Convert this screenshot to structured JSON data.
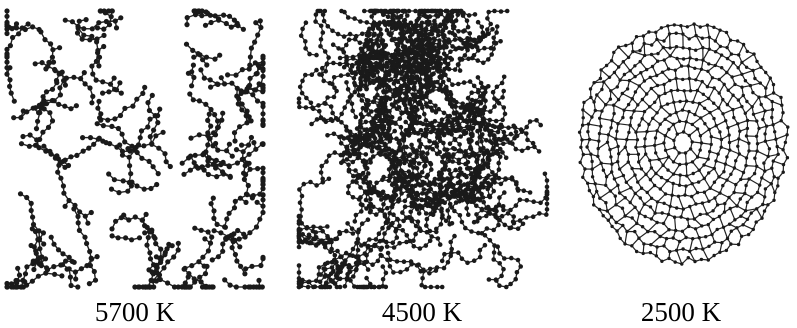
{
  "panels": [
    {
      "label": "5700 K",
      "structure": "dispersed-chains"
    },
    {
      "label": "4500 K",
      "structure": "tangled-network"
    },
    {
      "label": "2500 K",
      "structure": "nested-cage"
    }
  ],
  "colors": {
    "background": "#ffffff",
    "atom": "#1a1a1a",
    "bond": "#222222",
    "text": "#000000"
  }
}
